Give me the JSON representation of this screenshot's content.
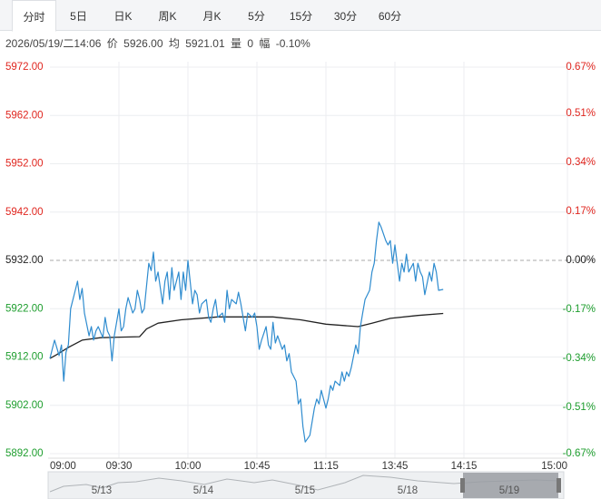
{
  "tabs": [
    "分时",
    "5日",
    "日K",
    "周K",
    "月K",
    "5分",
    "15分",
    "30分",
    "60分"
  ],
  "info": {
    "datetime": "2026/05/19/二14:06",
    "price_label": "价",
    "price": "5926.00",
    "avg_label": "均",
    "avg": "5921.01",
    "vol_label": "量",
    "vol": "0",
    "chg_label": "幅",
    "chg": "-0.10%"
  },
  "chart_data": {
    "type": "line",
    "xlim": [
      0,
      225
    ],
    "xticks": [
      {
        "value": 0,
        "label": "09:00"
      },
      {
        "value": 30,
        "label": "09:30"
      },
      {
        "value": 60,
        "label": "10:00"
      },
      {
        "value": 90,
        "label": "10:45"
      },
      {
        "value": 120,
        "label": "11:15"
      },
      {
        "value": 150,
        "label": "13:45"
      },
      {
        "value": 180,
        "label": "14:15"
      },
      {
        "value": 225,
        "label": "15:00"
      }
    ],
    "ylim": [
      5892,
      5972
    ],
    "yticks": [
      {
        "value": 5972,
        "label": "5972.00"
      },
      {
        "value": 5962,
        "label": "5962.00"
      },
      {
        "value": 5952,
        "label": "5952.00"
      },
      {
        "value": 5942,
        "label": "5942.00"
      },
      {
        "value": 5932,
        "label": "5932.00"
      },
      {
        "value": 5922,
        "label": "5922.00"
      },
      {
        "value": 5912,
        "label": "5912.00"
      },
      {
        "value": 5902,
        "label": "5902.00"
      },
      {
        "value": 5892,
        "label": "5892.00"
      }
    ],
    "y2lim": [
      -0.67,
      0.67
    ],
    "y2ticks": [
      {
        "value": 0.67,
        "label": "0.67%"
      },
      {
        "value": 0.51,
        "label": "0.51%"
      },
      {
        "value": 0.34,
        "label": "0.34%"
      },
      {
        "value": 0.17,
        "label": "0.17%"
      },
      {
        "value": 0,
        "label": "0.00%"
      },
      {
        "value": -0.17,
        "label": "-0.17%"
      },
      {
        "value": -0.34,
        "label": "-0.34%"
      },
      {
        "value": -0.51,
        "label": "-0.51%"
      },
      {
        "value": -0.67,
        "label": "-0.67%"
      }
    ],
    "series": [
      {
        "color": "#2f8ccf",
        "x": [
          0,
          1,
          2,
          4,
          5,
          6,
          7,
          8,
          9,
          11,
          12,
          13,
          14,
          15,
          17,
          18,
          19,
          20,
          21,
          23,
          24,
          25,
          26,
          27,
          28,
          30,
          31,
          32,
          33,
          34,
          36,
          37,
          38,
          39,
          40,
          41,
          43,
          44,
          45,
          46,
          47,
          49,
          50,
          51,
          52,
          53,
          54,
          56,
          57,
          58,
          59,
          60,
          62,
          63,
          64,
          65,
          66,
          68,
          69,
          70,
          71,
          72,
          73,
          75,
          76,
          77,
          78,
          79,
          81,
          82,
          83,
          84,
          85,
          86,
          88,
          89,
          90,
          91,
          92,
          94,
          95,
          96,
          97,
          98,
          99,
          101,
          102,
          103,
          104,
          105,
          107,
          108,
          109,
          110,
          111,
          113,
          114,
          115,
          116,
          117,
          118,
          120,
          121,
          122,
          123,
          124,
          126,
          127,
          128,
          129,
          130,
          131,
          133,
          134,
          135,
          136,
          137,
          139,
          140,
          141,
          142,
          143,
          144,
          146,
          147,
          148,
          149,
          150,
          152,
          153,
          154,
          155,
          156,
          158,
          159,
          160,
          161,
          162,
          163,
          165,
          166,
          167,
          168,
          169,
          171
        ],
        "values": [
          5911.7,
          5913.6,
          5915.5,
          5912.3,
          5914.5,
          5907.0,
          5913.0,
          5914.5,
          5922.0,
          5925.8,
          5927.7,
          5923.9,
          5926.2,
          5921.1,
          5916.4,
          5918.3,
          5915.5,
          5917.4,
          5918.3,
          5916.0,
          5920.2,
          5917.4,
          5916.4,
          5911.2,
          5916.4,
          5922.0,
          5917.4,
          5918.3,
          5922.0,
          5924.3,
          5921.1,
          5922.0,
          5925.8,
          5923.9,
          5921.1,
          5922.0,
          5931.4,
          5929.9,
          5933.7,
          5927.7,
          5929.6,
          5923.0,
          5927.7,
          5929.6,
          5923.9,
          5930.5,
          5925.8,
          5929.6,
          5923.9,
          5929.6,
          5925.8,
          5932.0,
          5923.0,
          5925.8,
          5924.9,
          5921.1,
          5923.0,
          5923.9,
          5920.2,
          5919.2,
          5922.0,
          5923.9,
          5920.2,
          5921.1,
          5919.2,
          5925.8,
          5922.0,
          5923.9,
          5923.0,
          5925.4,
          5923.0,
          5920.2,
          5917.4,
          5921.1,
          5920.2,
          5921.1,
          5918.3,
          5913.6,
          5915.5,
          5918.3,
          5914.5,
          5913.6,
          5919.2,
          5914.9,
          5916.4,
          5913.6,
          5914.5,
          5911.2,
          5912.7,
          5908.9,
          5907.0,
          5902.3,
          5903.3,
          5897.6,
          5894.4,
          5895.8,
          5898.6,
          5901.4,
          5903.3,
          5902.3,
          5905.1,
          5901.4,
          5903.3,
          5906.1,
          5905.1,
          5907.0,
          5906.1,
          5908.9,
          5907.0,
          5908.9,
          5908.0,
          5909.8,
          5914.5,
          5912.7,
          5918.3,
          5921.1,
          5923.9,
          5925.8,
          5929.6,
          5931.4,
          5936.1,
          5939.9,
          5938.9,
          5936.1,
          5935.2,
          5936.1,
          5931.4,
          5935.2,
          5927.7,
          5931.4,
          5929.6,
          5933.3,
          5929.6,
          5931.4,
          5927.7,
          5931.4,
          5929.6,
          5928.6,
          5924.9,
          5929.6,
          5927.7,
          5931.4,
          5929.6,
          5925.8,
          5926.0
        ]
      },
      {
        "color": "#222222",
        "x": [
          0,
          3,
          8,
          14,
          22,
          39,
          42,
          47,
          57,
          73,
          97,
          109,
          120,
          134,
          140,
          148,
          160,
          171
        ],
        "values": [
          5911.7,
          5912.5,
          5914.0,
          5915.5,
          5916.0,
          5916.2,
          5917.8,
          5919.0,
          5919.7,
          5920.3,
          5920.3,
          5919.7,
          5918.8,
          5918.3,
          5919.0,
          5920.0,
          5920.6,
          5921.01
        ]
      }
    ],
    "up_color": "#e0261f",
    "down_color": "#1e9e2e",
    "flat_color": "#222222"
  },
  "navigator": {
    "dates": [
      "5/13",
      "5/14",
      "5/15",
      "5/18",
      "5/19"
    ]
  }
}
